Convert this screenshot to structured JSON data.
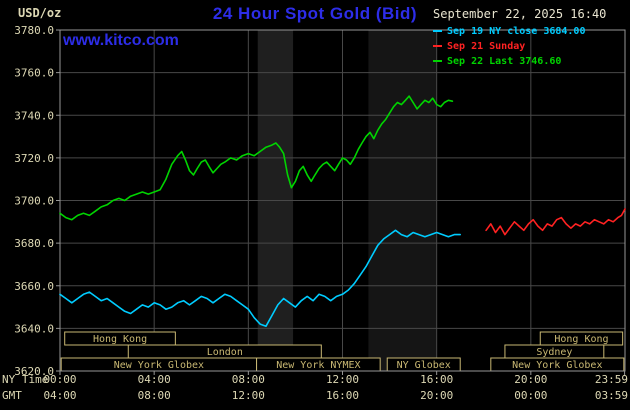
{
  "header": {
    "unit_label": "USD/oz",
    "title": "24 Hour Spot Gold (Bid)",
    "datetime": "September 22, 2025 16:40",
    "watermark": "www.kitco.com"
  },
  "legend": [
    {
      "label": "Sep 19 NY close 3684.00",
      "color": "#00ccff"
    },
    {
      "label": "Sep 21 Sunday",
      "color": "#ff2222"
    },
    {
      "label": "Sep 22 Last 3746.60",
      "color": "#00d400"
    }
  ],
  "axes": {
    "ny_time_label": "NY Time",
    "gmt_label": "GMT"
  },
  "colors": {
    "background": "#000000",
    "title_blue": "#2d2de8",
    "axis_text": "#ddd8b4",
    "session": "#c9b873",
    "gridline": "#484848",
    "plot_border": "#969696",
    "date_text": "#e9e5d0"
  },
  "chart_data": {
    "type": "line",
    "title": "24 Hour Spot Gold (Bid)",
    "ylabel": "USD/oz",
    "ylim": [
      3620,
      3780
    ],
    "ytick_step": 20,
    "x_range": [
      0,
      24
    ],
    "xticks": [
      {
        "hour": 0,
        "ny": "00:00",
        "gmt": "04:00"
      },
      {
        "hour": 4,
        "ny": "04:00",
        "gmt": "08:00"
      },
      {
        "hour": 8,
        "ny": "08:00",
        "gmt": "12:00"
      },
      {
        "hour": 12,
        "ny": "12:00",
        "gmt": "16:00"
      },
      {
        "hour": 16,
        "ny": "16:00",
        "gmt": "20:00"
      },
      {
        "hour": 20,
        "ny": "20:00",
        "gmt": "00:00"
      },
      {
        "hour": 23.983,
        "ny": "23:59",
        "gmt": "03:59"
      }
    ],
    "bands": [
      {
        "start": 8.4,
        "end": 9.9,
        "color": "#1f1f1f"
      },
      {
        "start": 13.1,
        "end": 16.0,
        "color": "#151515"
      }
    ],
    "sessions": [
      {
        "row": 0,
        "start": 0.2,
        "end": 4.9,
        "label": "Hong Kong"
      },
      {
        "row": 0,
        "start": 20.4,
        "end": 23.9,
        "label": "Hong Kong"
      },
      {
        "row": 1,
        "start": 2.9,
        "end": 11.1,
        "label": "London"
      },
      {
        "row": 1,
        "start": 18.9,
        "end": 23.1,
        "label": "Sydney"
      },
      {
        "row": 2,
        "start": 0.05,
        "end": 8.35,
        "label": "New York Globex"
      },
      {
        "row": 2,
        "start": 8.35,
        "end": 13.6,
        "label": "New York NYMEX"
      },
      {
        "row": 2,
        "start": 13.9,
        "end": 17.0,
        "label": "NY Globex"
      },
      {
        "row": 2,
        "start": 18.3,
        "end": 23.95,
        "label": "New York Globex"
      }
    ],
    "series": [
      {
        "name": "Sep 19 NY close 3684.00",
        "color": "#00ccff",
        "points": [
          [
            0,
            3656
          ],
          [
            0.25,
            3654
          ],
          [
            0.5,
            3652
          ],
          [
            0.75,
            3654
          ],
          [
            1,
            3656
          ],
          [
            1.25,
            3657
          ],
          [
            1.5,
            3655
          ],
          [
            1.75,
            3653
          ],
          [
            2,
            3654
          ],
          [
            2.25,
            3652
          ],
          [
            2.5,
            3650
          ],
          [
            2.75,
            3648
          ],
          [
            3,
            3647
          ],
          [
            3.25,
            3649
          ],
          [
            3.5,
            3651
          ],
          [
            3.75,
            3650
          ],
          [
            4,
            3652
          ],
          [
            4.25,
            3651
          ],
          [
            4.5,
            3649
          ],
          [
            4.75,
            3650
          ],
          [
            5,
            3652
          ],
          [
            5.25,
            3653
          ],
          [
            5.5,
            3651
          ],
          [
            5.75,
            3653
          ],
          [
            6,
            3655
          ],
          [
            6.25,
            3654
          ],
          [
            6.5,
            3652
          ],
          [
            6.75,
            3654
          ],
          [
            7,
            3656
          ],
          [
            7.25,
            3655
          ],
          [
            7.5,
            3653
          ],
          [
            7.75,
            3651
          ],
          [
            8,
            3649
          ],
          [
            8.25,
            3645
          ],
          [
            8.5,
            3642
          ],
          [
            8.75,
            3641
          ],
          [
            9,
            3646
          ],
          [
            9.25,
            3651
          ],
          [
            9.5,
            3654
          ],
          [
            9.75,
            3652
          ],
          [
            10,
            3650
          ],
          [
            10.25,
            3653
          ],
          [
            10.5,
            3655
          ],
          [
            10.75,
            3653
          ],
          [
            11,
            3656
          ],
          [
            11.25,
            3655
          ],
          [
            11.5,
            3653
          ],
          [
            11.75,
            3655
          ],
          [
            12,
            3656
          ],
          [
            12.25,
            3658
          ],
          [
            12.5,
            3661
          ],
          [
            12.75,
            3665
          ],
          [
            13,
            3669
          ],
          [
            13.25,
            3674
          ],
          [
            13.5,
            3679
          ],
          [
            13.75,
            3682
          ],
          [
            14,
            3684
          ],
          [
            14.25,
            3686
          ],
          [
            14.5,
            3684
          ],
          [
            14.75,
            3683
          ],
          [
            15,
            3685
          ],
          [
            15.25,
            3684
          ],
          [
            15.5,
            3683
          ],
          [
            15.75,
            3684
          ],
          [
            16,
            3685
          ],
          [
            16.25,
            3684
          ],
          [
            16.5,
            3683
          ],
          [
            16.75,
            3684
          ],
          [
            17,
            3684
          ]
        ]
      },
      {
        "name": "Sep 21 Sunday",
        "color": "#ff2222",
        "points": [
          [
            18.1,
            3686
          ],
          [
            18.3,
            3689
          ],
          [
            18.5,
            3685
          ],
          [
            18.7,
            3688
          ],
          [
            18.9,
            3684
          ],
          [
            19.1,
            3687
          ],
          [
            19.3,
            3690
          ],
          [
            19.5,
            3688
          ],
          [
            19.7,
            3686
          ],
          [
            19.9,
            3689
          ],
          [
            20.1,
            3691
          ],
          [
            20.3,
            3688
          ],
          [
            20.5,
            3686
          ],
          [
            20.7,
            3689
          ],
          [
            20.9,
            3688
          ],
          [
            21.1,
            3691
          ],
          [
            21.3,
            3692
          ],
          [
            21.5,
            3689
          ],
          [
            21.7,
            3687
          ],
          [
            21.9,
            3689
          ],
          [
            22.1,
            3688
          ],
          [
            22.3,
            3690
          ],
          [
            22.5,
            3689
          ],
          [
            22.7,
            3691
          ],
          [
            22.9,
            3690
          ],
          [
            23.1,
            3689
          ],
          [
            23.3,
            3691
          ],
          [
            23.5,
            3690
          ],
          [
            23.7,
            3692
          ],
          [
            23.85,
            3693
          ],
          [
            24,
            3696
          ]
        ]
      },
      {
        "name": "Sep 22 Last 3746.60",
        "color": "#00d400",
        "points": [
          [
            0,
            3694
          ],
          [
            0.25,
            3692
          ],
          [
            0.5,
            3691
          ],
          [
            0.75,
            3693
          ],
          [
            1,
            3694
          ],
          [
            1.25,
            3693
          ],
          [
            1.5,
            3695
          ],
          [
            1.75,
            3697
          ],
          [
            2,
            3698
          ],
          [
            2.25,
            3700
          ],
          [
            2.5,
            3701
          ],
          [
            2.75,
            3700
          ],
          [
            3,
            3702
          ],
          [
            3.25,
            3703
          ],
          [
            3.5,
            3704
          ],
          [
            3.75,
            3703
          ],
          [
            4,
            3704
          ],
          [
            4.25,
            3705
          ],
          [
            4.5,
            3710
          ],
          [
            4.75,
            3717
          ],
          [
            5,
            3721
          ],
          [
            5.17,
            3723
          ],
          [
            5.33,
            3719
          ],
          [
            5.5,
            3714
          ],
          [
            5.67,
            3712
          ],
          [
            5.83,
            3715
          ],
          [
            6,
            3718
          ],
          [
            6.17,
            3719
          ],
          [
            6.33,
            3716
          ],
          [
            6.5,
            3713
          ],
          [
            6.67,
            3715
          ],
          [
            6.83,
            3717
          ],
          [
            7,
            3718
          ],
          [
            7.25,
            3720
          ],
          [
            7.5,
            3719
          ],
          [
            7.75,
            3721
          ],
          [
            8,
            3722
          ],
          [
            8.25,
            3721
          ],
          [
            8.5,
            3723
          ],
          [
            8.75,
            3725
          ],
          [
            9,
            3726
          ],
          [
            9.17,
            3727
          ],
          [
            9.33,
            3725
          ],
          [
            9.5,
            3722
          ],
          [
            9.67,
            3712
          ],
          [
            9.83,
            3706
          ],
          [
            10,
            3709
          ],
          [
            10.17,
            3714
          ],
          [
            10.33,
            3716
          ],
          [
            10.5,
            3712
          ],
          [
            10.67,
            3709
          ],
          [
            10.83,
            3712
          ],
          [
            11,
            3715
          ],
          [
            11.17,
            3717
          ],
          [
            11.33,
            3718
          ],
          [
            11.5,
            3716
          ],
          [
            11.67,
            3714
          ],
          [
            11.83,
            3717
          ],
          [
            12,
            3720
          ],
          [
            12.17,
            3719
          ],
          [
            12.33,
            3717
          ],
          [
            12.5,
            3720
          ],
          [
            12.67,
            3724
          ],
          [
            12.83,
            3727
          ],
          [
            13,
            3730
          ],
          [
            13.17,
            3732
          ],
          [
            13.33,
            3729
          ],
          [
            13.5,
            3733
          ],
          [
            13.67,
            3736
          ],
          [
            13.83,
            3738
          ],
          [
            14,
            3741
          ],
          [
            14.17,
            3744
          ],
          [
            14.33,
            3746
          ],
          [
            14.5,
            3745
          ],
          [
            14.67,
            3747
          ],
          [
            14.83,
            3749
          ],
          [
            15,
            3746
          ],
          [
            15.17,
            3743
          ],
          [
            15.33,
            3745
          ],
          [
            15.5,
            3747
          ],
          [
            15.67,
            3746
          ],
          [
            15.83,
            3748
          ],
          [
            16,
            3745
          ],
          [
            16.17,
            3744
          ],
          [
            16.33,
            3746
          ],
          [
            16.5,
            3747
          ],
          [
            16.67,
            3746.6
          ]
        ]
      }
    ]
  }
}
